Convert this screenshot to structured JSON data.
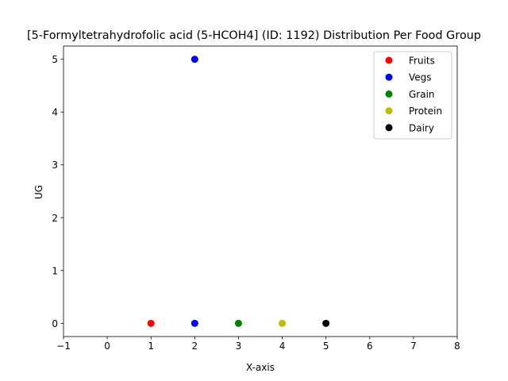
{
  "chart_data": {
    "type": "scatter",
    "title": "[5-Formyltetrahydrofolic acid (5-HCOH4] (ID: 1192) Distribution Per Food Group",
    "xlabel": "X-axis",
    "ylabel": "UG",
    "xlim": [
      -1,
      8
    ],
    "ylim": [
      -0.25,
      5.25
    ],
    "xticks": [
      -1,
      0,
      1,
      2,
      3,
      4,
      5,
      6,
      7,
      8
    ],
    "yticks": [
      0,
      1,
      2,
      3,
      4,
      5
    ],
    "grid": false,
    "legend_position": "top-right",
    "series": [
      {
        "name": "Fruits",
        "color": "#ff0000",
        "points": [
          [
            1,
            0
          ]
        ]
      },
      {
        "name": "Vegs",
        "color": "#0000ff",
        "points": [
          [
            2,
            5
          ],
          [
            2,
            0
          ]
        ]
      },
      {
        "name": "Grain",
        "color": "#008000",
        "points": [
          [
            3,
            0
          ]
        ]
      },
      {
        "name": "Protein",
        "color": "#bfbf00",
        "points": [
          [
            4,
            0
          ]
        ]
      },
      {
        "name": "Dairy",
        "color": "#000000",
        "points": [
          [
            5,
            0
          ]
        ]
      }
    ]
  }
}
